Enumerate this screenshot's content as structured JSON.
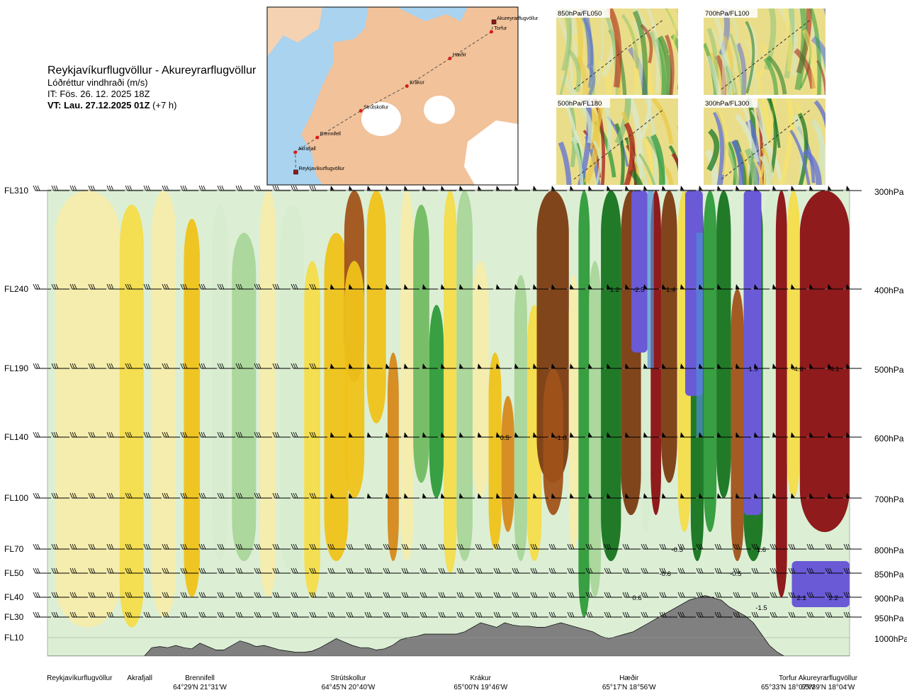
{
  "header": {
    "title": "Reykjavíkurflugvöllur - Akureyrarflugvöllur",
    "subtitle": "Lóðréttur vindhraði (m/s)",
    "issue_time": "IT: Fös. 26. 12. 2025 18Z",
    "valid_time_bold": "VT: Lau. 27.12.2025 01Z",
    "valid_time_offset": "(+7 h)"
  },
  "route_map": {
    "waypoints": [
      {
        "name": "Akureyrarflugvöllur",
        "lon": -18.07,
        "lat": 65.65,
        "marker": "square"
      },
      {
        "name": "Torfur",
        "lon": -18.12,
        "lat": 65.55,
        "marker": "circle"
      },
      {
        "name": "Hæðir",
        "lon": -18.93,
        "lat": 65.28,
        "marker": "circle"
      },
      {
        "name": "Krákur",
        "lon": -19.77,
        "lat": 65.0,
        "marker": "circle"
      },
      {
        "name": "Strútskollur",
        "lon": -20.67,
        "lat": 64.75,
        "marker": "circle"
      },
      {
        "name": "Brennifell",
        "lon": -21.52,
        "lat": 64.48,
        "marker": "circle"
      },
      {
        "name": "Akrafjall",
        "lon": -21.95,
        "lat": 64.33,
        "marker": "circle"
      },
      {
        "name": "Reykjavíkurflugvöllur",
        "lon": -21.94,
        "lat": 64.13,
        "marker": "square"
      }
    ],
    "colors": {
      "sea": "#a9d3ef",
      "land": "#f2c29a",
      "ice": "#ffffff",
      "route": "#555555",
      "point": "#d81c1c"
    }
  },
  "mini_maps": [
    {
      "label": "850hPa/FL050"
    },
    {
      "label": "700hPa/FL100"
    },
    {
      "label": "500hPa/FL180"
    },
    {
      "label": "300hPa/FL300"
    }
  ],
  "chart_data": {
    "type": "heatmap",
    "variable": "Lóðréttur vindhraði (m/s)",
    "x_axis": {
      "range": [
        0,
        100
      ]
    },
    "flight_levels": [
      "FL310",
      "FL240",
      "FL190",
      "FL140",
      "FL100",
      "FL70",
      "FL50",
      "FL40",
      "FL30",
      "FL10"
    ],
    "pressure_levels": [
      "300hPa",
      "400hPa",
      "500hPa",
      "600hPa",
      "700hPa",
      "800hPa",
      "850hPa",
      "900hPa",
      "950hPa",
      "1000hPa"
    ],
    "level_values": [
      310,
      240,
      190,
      140,
      100,
      70,
      50,
      40,
      30,
      10
    ],
    "bottom_labels": [
      {
        "x": 4,
        "name": "Reykjavíkurflugvöllur",
        "coord": ""
      },
      {
        "x": 11.5,
        "name": "Akrafjall",
        "coord": ""
      },
      {
        "x": 19,
        "name": "Brennifell",
        "coord": "64°29'N 21°31'W"
      },
      {
        "x": 37.5,
        "name": "Strútskollur",
        "coord": "64°45'N 20°40'W"
      },
      {
        "x": 54,
        "name": "Krákur",
        "coord": "65°00'N 19°46'W"
      },
      {
        "x": 72.5,
        "name": "Hæðir",
        "coord": "65°17'N 18°56'W"
      },
      {
        "x": 92.3,
        "name": "Torfur",
        "coord": "65°33'N 18°07'W"
      },
      {
        "x": 97.3,
        "name": "Akureyrarflugvöllur",
        "coord": "65°39'N 18°04'W"
      }
    ],
    "value_labels": [
      {
        "x": 70.7,
        "level": 240,
        "text": "1.2"
      },
      {
        "x": 73.7,
        "level": 240,
        "text": "-2.5"
      },
      {
        "x": 77.7,
        "level": 240,
        "text": "1.4"
      },
      {
        "x": 88.0,
        "level": 190,
        "text": "1.9"
      },
      {
        "x": 93.5,
        "level": 190,
        "text": "-4.6"
      },
      {
        "x": 98.0,
        "level": 190,
        "text": "-4.1"
      },
      {
        "x": 57.0,
        "level": 140,
        "text": "0.5"
      },
      {
        "x": 64.0,
        "level": 140,
        "text": "-1.0"
      },
      {
        "x": 78.5,
        "level": 70,
        "text": "-0.5"
      },
      {
        "x": 89.0,
        "level": 70,
        "text": "1.6"
      },
      {
        "x": 77.0,
        "level": 50,
        "text": "-0.6"
      },
      {
        "x": 85.8,
        "level": 50,
        "text": "-0.5"
      },
      {
        "x": 73.5,
        "level": 40,
        "text": "0.6"
      },
      {
        "x": 94.0,
        "level": 40,
        "text": "2.1"
      },
      {
        "x": 98.0,
        "level": 40,
        "text": "2.2"
      },
      {
        "x": 89.0,
        "level": 35,
        "text": "-1.5"
      }
    ],
    "terrain_heights": [
      0,
      0,
      0,
      0,
      0,
      0,
      0,
      0,
      0,
      0,
      0,
      0,
      0,
      8,
      9,
      8,
      10,
      8,
      7,
      12,
      9,
      6,
      6,
      10,
      14,
      12,
      9,
      10,
      8,
      6,
      5,
      4,
      4,
      5,
      8,
      12,
      16,
      13,
      10,
      8,
      8,
      6,
      7,
      10,
      15,
      17,
      18,
      20,
      20,
      20,
      20,
      20,
      22,
      26,
      30,
      28,
      26,
      30,
      28,
      27,
      27,
      26,
      26,
      28,
      30,
      28,
      26,
      24,
      22,
      18,
      16,
      18,
      20,
      22,
      26,
      30,
      34,
      38,
      42,
      46,
      50,
      52,
      54,
      52,
      50,
      44,
      40,
      36,
      30,
      20,
      10,
      4,
      0,
      0,
      0,
      0,
      0,
      0,
      0,
      0,
      0
    ],
    "colors": {
      "terrain": "#808080"
    }
  }
}
